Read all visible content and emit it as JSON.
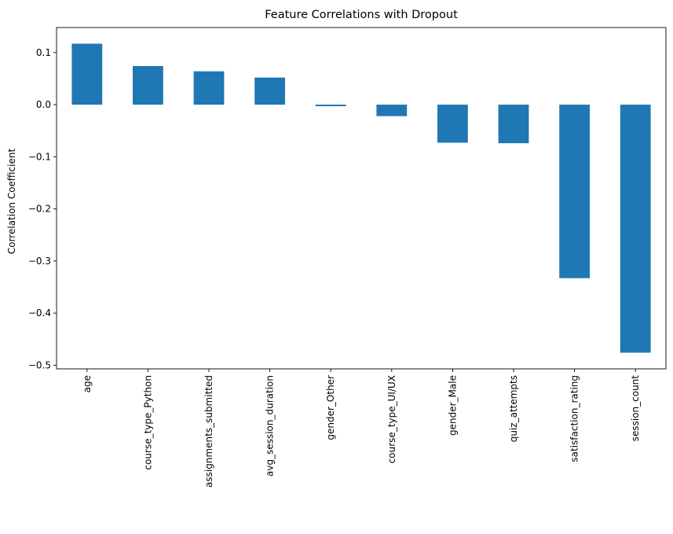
{
  "chart_data": {
    "type": "bar",
    "title": "Feature Correlations with Dropout",
    "xlabel": "",
    "ylabel": "Correlation Coefficient",
    "categories": [
      "age",
      "course_type_Python",
      "assignments_submitted",
      "avg_session_duration",
      "gender_Other",
      "course_type_UI/UX",
      "gender_Male",
      "quiz_attempts",
      "satisfaction_rating",
      "session_count"
    ],
    "values": [
      0.117,
      0.074,
      0.064,
      0.052,
      -0.003,
      -0.022,
      -0.073,
      -0.074,
      -0.333,
      -0.476
    ],
    "ylim": [
      -0.507,
      0.148
    ],
    "yticks": [
      0.1,
      0.0,
      -0.1,
      -0.2,
      -0.3,
      -0.4,
      -0.5
    ],
    "ytick_labels": [
      "0.1",
      "0.0",
      "−0.1",
      "−0.2",
      "−0.3",
      "−0.4",
      "−0.5"
    ],
    "bar_color": "#1f77b4",
    "grid": false,
    "legend": false
  }
}
